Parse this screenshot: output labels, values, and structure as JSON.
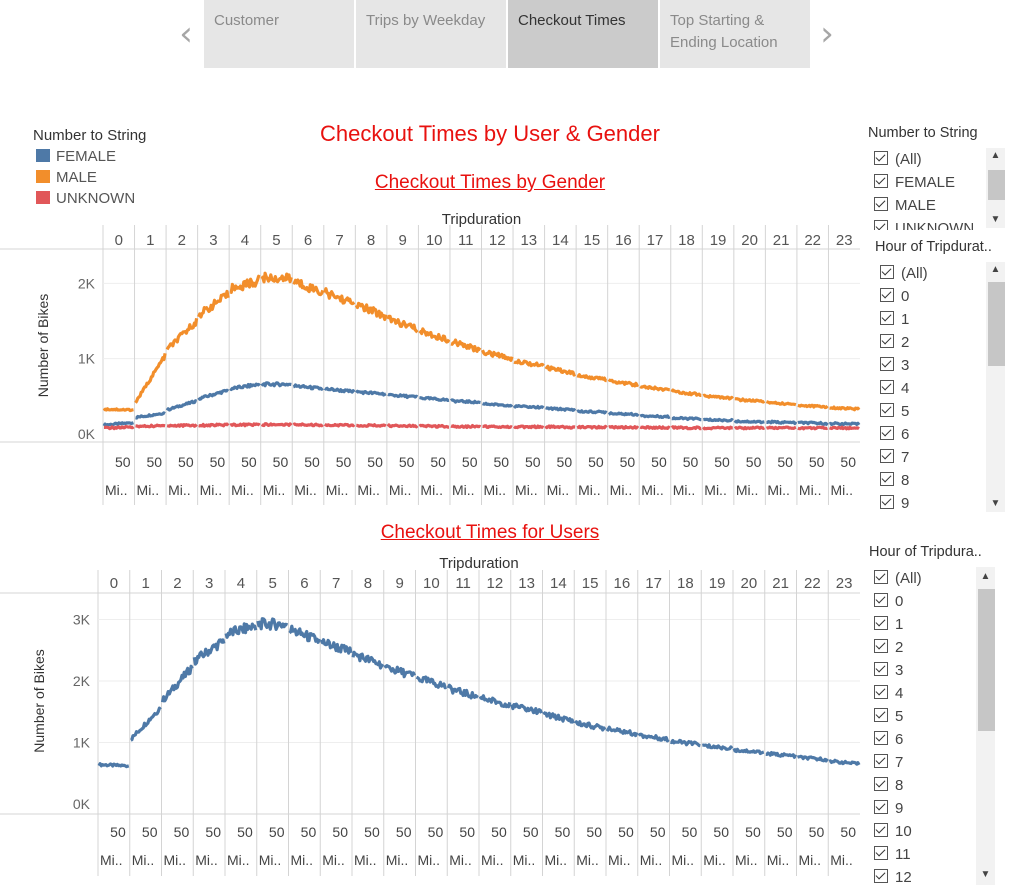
{
  "nav": {
    "prev_icon": "chevron-left-icon",
    "next_icon": "chevron-right-icon",
    "tabs": [
      {
        "label": "Customer",
        "active": false
      },
      {
        "label": "Trips by Weekday",
        "active": false
      },
      {
        "label": "Checkout Times",
        "active": true
      },
      {
        "label": "Top Starting & Ending Location",
        "active": false
      }
    ]
  },
  "dashboard": {
    "title": "Checkout Times by User & Gender",
    "gender_chart_title": "Checkout Times by Gender",
    "users_chart_title": "Checkout Times for Users"
  },
  "legend": {
    "title": "Number to String",
    "items": [
      {
        "label": "FEMALE",
        "color": "#4e79a7"
      },
      {
        "label": "MALE",
        "color": "#f28e2b"
      },
      {
        "label": "UNKNOWN",
        "color": "#e15759"
      }
    ]
  },
  "filters": {
    "number_to_string": {
      "title": "Number to String",
      "items": [
        "(All)",
        "FEMALE",
        "MALE",
        "UNKNOWN"
      ]
    },
    "hour_gender": {
      "title": "Hour of Tripdurat..",
      "items": [
        "(All)",
        "0",
        "1",
        "2",
        "3",
        "4",
        "5",
        "6",
        "7",
        "8",
        "9"
      ]
    },
    "hour_users": {
      "title": "Hour of Tripdura..",
      "items": [
        "(All)",
        "0",
        "1",
        "2",
        "3",
        "4",
        "5",
        "6",
        "7",
        "8",
        "9",
        "10",
        "11",
        "12"
      ]
    }
  },
  "chart_data": [
    {
      "type": "line",
      "title": "Checkout Times by Gender",
      "xlabel": "Tripduration",
      "ylabel": "Number of Bikes",
      "categories": [
        "0",
        "1",
        "2",
        "3",
        "4",
        "5",
        "6",
        "7",
        "8",
        "9",
        "10",
        "11",
        "12",
        "13",
        "14",
        "15",
        "16",
        "17",
        "18",
        "19",
        "20",
        "21",
        "22",
        "23"
      ],
      "minute_tick_label": "50",
      "minute_unit_label": "Mi..",
      "yticks": [
        {
          "value": 0,
          "label": "0K"
        },
        {
          "value": 1000,
          "label": "1K"
        },
        {
          "value": 2000,
          "label": "2K"
        }
      ],
      "ylim": [
        0,
        2350
      ],
      "series": [
        {
          "name": "FEMALE",
          "color": "#4e79a7",
          "start": [
            120,
            220,
            320,
            470,
            600,
            660,
            640,
            600,
            560,
            520,
            480,
            440,
            400,
            370,
            340,
            300,
            270,
            240,
            210,
            190,
            170,
            160,
            150,
            140
          ],
          "end": [
            150,
            280,
            440,
            580,
            660,
            660,
            600,
            560,
            530,
            490,
            450,
            420,
            380,
            350,
            320,
            290,
            260,
            230,
            200,
            180,
            160,
            150,
            140,
            130
          ]
        },
        {
          "name": "MALE",
          "color": "#f28e2b",
          "start": [
            330,
            420,
            1120,
            1580,
            1920,
            2080,
            2030,
            1880,
            1720,
            1530,
            1370,
            1230,
            1090,
            980,
            880,
            780,
            710,
            640,
            570,
            510,
            460,
            420,
            380,
            350
          ],
          "end": [
            320,
            1040,
            1500,
            1850,
            2040,
            2060,
            1880,
            1730,
            1560,
            1390,
            1250,
            1110,
            1000,
            900,
            800,
            720,
            650,
            580,
            520,
            470,
            430,
            390,
            360,
            330
          ]
        },
        {
          "name": "UNKNOWN",
          "color": "#e15759",
          "start": [
            80,
            100,
            110,
            115,
            120,
            125,
            125,
            120,
            115,
            110,
            105,
            100,
            100,
            95,
            95,
            90,
            90,
            85,
            85,
            80,
            80,
            80,
            80,
            80
          ],
          "end": [
            90,
            110,
            115,
            120,
            125,
            125,
            120,
            115,
            110,
            105,
            100,
            100,
            95,
            95,
            90,
            90,
            85,
            85,
            80,
            80,
            80,
            80,
            80,
            80
          ]
        }
      ]
    },
    {
      "type": "line",
      "title": "Checkout Times for Users",
      "xlabel": "Tripduration",
      "ylabel": "Number of Bikes",
      "categories": [
        "0",
        "1",
        "2",
        "3",
        "4",
        "5",
        "6",
        "7",
        "8",
        "9",
        "10",
        "11",
        "12",
        "13",
        "14",
        "15",
        "16",
        "17",
        "18",
        "19",
        "20",
        "21",
        "22",
        "23"
      ],
      "minute_tick_label": "50",
      "minute_unit_label": "Mi..",
      "yticks": [
        {
          "value": 0,
          "label": "0K"
        },
        {
          "value": 1000,
          "label": "1K"
        },
        {
          "value": 2000,
          "label": "2K"
        },
        {
          "value": 3000,
          "label": "3K"
        }
      ],
      "ylim": [
        0,
        3350
      ],
      "series": [
        {
          "name": "",
          "color": "#4e79a7",
          "start": [
            640,
            1050,
            1680,
            2330,
            2760,
            2930,
            2840,
            2640,
            2440,
            2230,
            2050,
            1880,
            1730,
            1600,
            1460,
            1320,
            1220,
            1120,
            1020,
            950,
            880,
            820,
            760,
            700
          ],
          "end": [
            620,
            1570,
            2230,
            2660,
            2900,
            2920,
            2650,
            2470,
            2260,
            2080,
            1910,
            1740,
            1610,
            1490,
            1350,
            1230,
            1140,
            1050,
            970,
            900,
            840,
            780,
            720,
            650
          ]
        }
      ]
    }
  ]
}
